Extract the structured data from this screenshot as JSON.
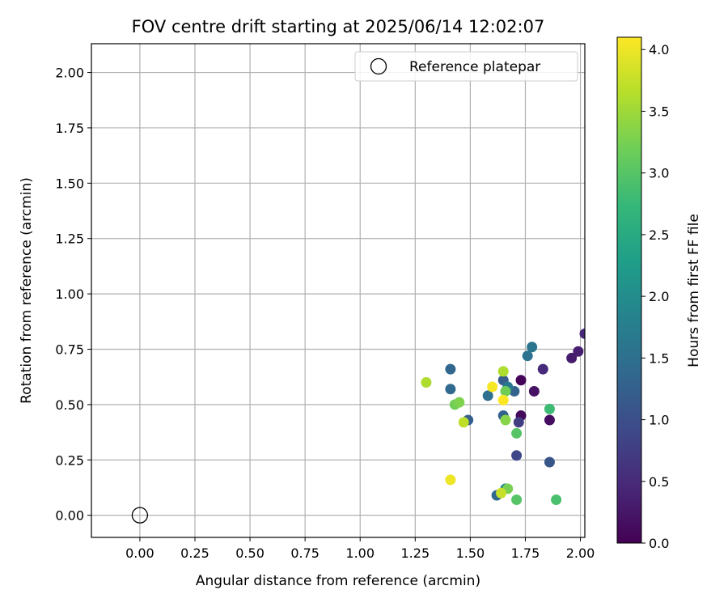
{
  "chart_data": {
    "type": "scatter",
    "title": "FOV centre drift starting at 2025/06/14 12:02:07",
    "xlabel": "Angular distance from reference (arcmin)",
    "ylabel": "Rotation from reference (arcmin)",
    "xlim": [
      -0.22,
      2.02
    ],
    "ylim": [
      -0.1,
      2.13
    ],
    "xticks": [
      0.0,
      0.25,
      0.5,
      0.75,
      1.0,
      1.25,
      1.5,
      1.75,
      2.0
    ],
    "xtick_labels": [
      "0.00",
      "0.25",
      "0.50",
      "0.75",
      "1.00",
      "1.25",
      "1.50",
      "1.75",
      "2.00"
    ],
    "yticks": [
      0.0,
      0.25,
      0.5,
      0.75,
      1.0,
      1.25,
      1.5,
      1.75,
      2.0
    ],
    "ytick_labels": [
      "0.00",
      "0.25",
      "0.50",
      "0.75",
      "1.00",
      "1.25",
      "1.50",
      "1.75",
      "2.00"
    ],
    "grid": true,
    "legend": {
      "placement": "top-right",
      "entries": [
        {
          "label": "Reference platepar",
          "marker": "open-circle"
        }
      ]
    },
    "reference_point": {
      "x": 0.0,
      "y": 0.0
    },
    "colorbar": {
      "label": "Hours from first FF file",
      "colormap": "viridis",
      "range": [
        0.0,
        4.1
      ],
      "ticks": [
        0.0,
        0.5,
        1.0,
        1.5,
        2.0,
        2.5,
        3.0,
        3.5,
        4.0
      ],
      "tick_labels": [
        "0.0",
        "0.5",
        "1.0",
        "1.5",
        "2.0",
        "2.5",
        "3.0",
        "3.5",
        "4.0"
      ]
    },
    "points": [
      {
        "x": 1.73,
        "y": 0.61,
        "hours": 0.05
      },
      {
        "x": 1.73,
        "y": 0.45,
        "hours": 0.1
      },
      {
        "x": 1.86,
        "y": 0.43,
        "hours": 0.15
      },
      {
        "x": 1.79,
        "y": 0.56,
        "hours": 0.2
      },
      {
        "x": 1.96,
        "y": 0.71,
        "hours": 0.3
      },
      {
        "x": 1.99,
        "y": 0.74,
        "hours": 0.35
      },
      {
        "x": 2.02,
        "y": 0.82,
        "hours": 0.45
      },
      {
        "x": 1.83,
        "y": 0.66,
        "hours": 0.5
      },
      {
        "x": 1.72,
        "y": 0.42,
        "hours": 0.75
      },
      {
        "x": 1.71,
        "y": 0.27,
        "hours": 0.9
      },
      {
        "x": 1.86,
        "y": 0.24,
        "hours": 1.1
      },
      {
        "x": 1.49,
        "y": 0.43,
        "hours": 1.2
      },
      {
        "x": 1.65,
        "y": 0.61,
        "hours": 1.2
      },
      {
        "x": 1.65,
        "y": 0.45,
        "hours": 1.3
      },
      {
        "x": 1.7,
        "y": 0.56,
        "hours": 1.3
      },
      {
        "x": 1.41,
        "y": 0.66,
        "hours": 1.35
      },
      {
        "x": 1.41,
        "y": 0.57,
        "hours": 1.4
      },
      {
        "x": 1.62,
        "y": 0.09,
        "hours": 1.4
      },
      {
        "x": 1.58,
        "y": 0.54,
        "hours": 1.5
      },
      {
        "x": 1.76,
        "y": 0.72,
        "hours": 1.55
      },
      {
        "x": 1.78,
        "y": 0.76,
        "hours": 1.6
      },
      {
        "x": 1.67,
        "y": 0.58,
        "hours": 1.65
      },
      {
        "x": 1.66,
        "y": 0.12,
        "hours": 1.9
      },
      {
        "x": 1.86,
        "y": 0.48,
        "hours": 2.8
      },
      {
        "x": 1.89,
        "y": 0.07,
        "hours": 2.9
      },
      {
        "x": 1.71,
        "y": 0.07,
        "hours": 3.0
      },
      {
        "x": 1.71,
        "y": 0.37,
        "hours": 3.0
      },
      {
        "x": 1.43,
        "y": 0.5,
        "hours": 3.2
      },
      {
        "x": 1.66,
        "y": 0.56,
        "hours": 3.2
      },
      {
        "x": 1.67,
        "y": 0.12,
        "hours": 3.25
      },
      {
        "x": 1.45,
        "y": 0.51,
        "hours": 3.3
      },
      {
        "x": 1.66,
        "y": 0.43,
        "hours": 3.35
      },
      {
        "x": 1.3,
        "y": 0.6,
        "hours": 3.6
      },
      {
        "x": 1.65,
        "y": 0.65,
        "hours": 3.6
      },
      {
        "x": 1.47,
        "y": 0.42,
        "hours": 3.7
      },
      {
        "x": 1.64,
        "y": 0.1,
        "hours": 3.75
      },
      {
        "x": 1.41,
        "y": 0.16,
        "hours": 4.0
      },
      {
        "x": 1.6,
        "y": 0.58,
        "hours": 4.05
      },
      {
        "x": 1.65,
        "y": 0.52,
        "hours": 4.1
      }
    ]
  }
}
